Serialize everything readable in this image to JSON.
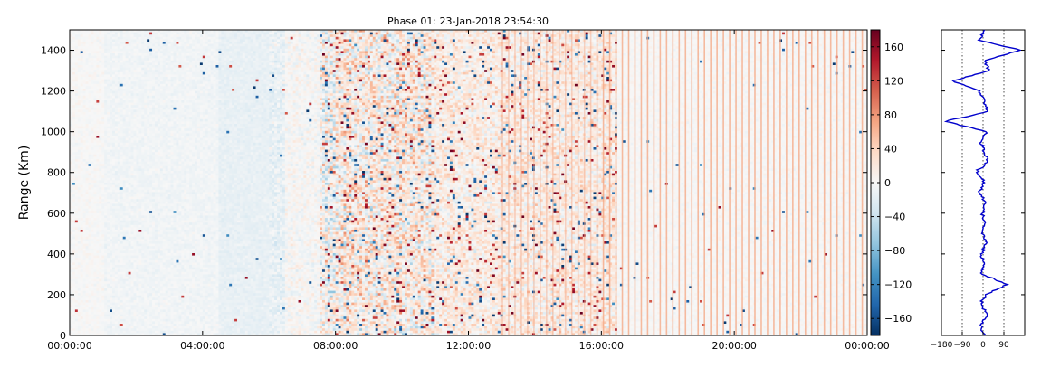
{
  "chart_data": [
    {
      "type": "heatmap",
      "title": "Phase 01: 23-Jan-2018 23:54:30",
      "xlabel": "",
      "ylabel": "Range (Km)",
      "xlim": [
        "00:00:00",
        "24:00:00"
      ],
      "ylim": [
        0,
        1500
      ],
      "x_ticks": [
        "00:00:00",
        "04:00:00",
        "08:00:00",
        "12:00:00",
        "16:00:00",
        "20:00:00",
        "00:00:00"
      ],
      "y_ticks": [
        0,
        200,
        400,
        600,
        800,
        1000,
        1200,
        1400
      ],
      "colorbar": {
        "colormap": "RdBu_r",
        "range": [
          -180,
          180
        ],
        "ticks": [
          -160,
          -120,
          -80,
          -40,
          0,
          40,
          80,
          120,
          160
        ]
      },
      "activity_profile": [
        {
          "from_hour": 0,
          "to_hour": 6,
          "level": "low"
        },
        {
          "from_hour": 6,
          "to_hour": 7.5,
          "level": "medium"
        },
        {
          "from_hour": 7.5,
          "to_hour": 11,
          "level": "high"
        },
        {
          "from_hour": 11,
          "to_hour": 16.5,
          "level": "medium-high"
        },
        {
          "from_hour": 16.5,
          "to_hour": 24,
          "level": "low"
        }
      ],
      "colors": {
        "negative": "#053061",
        "zero": "#f7f7f7",
        "positive": "#67001f",
        "stripe": "#f4a582"
      }
    },
    {
      "type": "line",
      "title": "",
      "xlabel": "",
      "ylabel": "",
      "xlim": [
        -180,
        180
      ],
      "ylim": [
        0,
        1500
      ],
      "x_ticks": [
        "−180",
        "−90",
        "0",
        "90"
      ],
      "x_gridlines": [
        -90,
        0,
        90
      ],
      "grid": true,
      "line_color": "#0000cc",
      "series": [
        {
          "y": [
            0,
            50,
            100,
            150,
            200,
            250,
            300,
            350,
            400,
            450,
            500,
            550,
            600,
            650,
            700,
            750,
            800,
            850,
            900,
            950,
            1000,
            1050,
            1100,
            1150,
            1200,
            1250,
            1300,
            1350,
            1400,
            1450,
            1500
          ],
          "x": [
            8,
            -12,
            18,
            -6,
            10,
            105,
            -4,
            6,
            -10,
            14,
            -6,
            8,
            -3,
            12,
            -16,
            6,
            -28,
            18,
            4,
            -8,
            12,
            -160,
            20,
            8,
            -14,
            -130,
            26,
            10,
            160,
            -20,
            6
          ]
        }
      ]
    }
  ]
}
